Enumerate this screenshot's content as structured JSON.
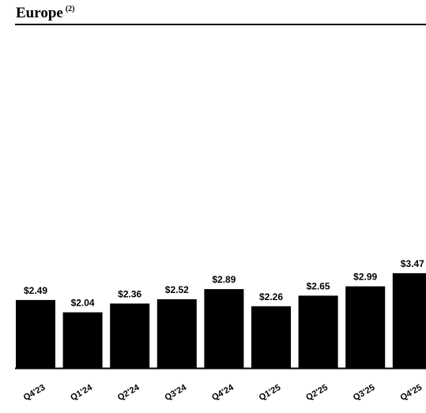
{
  "header": {
    "title": "Europe",
    "footnote": "(2)"
  },
  "colors": {
    "bar": "#000000",
    "axis": "#000000",
    "text": "#000000"
  },
  "chart_data": {
    "type": "bar",
    "title": "Europe (2)",
    "categories": [
      "Q4'23",
      "Q1'24",
      "Q2'24",
      "Q3'24",
      "Q4'24",
      "Q1'25",
      "Q2'25",
      "Q3'25",
      "Q4'25"
    ],
    "values": [
      2.49,
      2.04,
      2.36,
      2.52,
      2.89,
      2.26,
      2.65,
      2.99,
      3.47
    ],
    "data_labels": [
      "$2.49",
      "$2.04",
      "$2.36",
      "$2.52",
      "$2.89",
      "$2.26",
      "$2.65",
      "$2.99",
      "$3.47"
    ],
    "xlabel": "",
    "ylabel": "",
    "grid": false,
    "ylim": [
      0,
      3.47
    ]
  }
}
